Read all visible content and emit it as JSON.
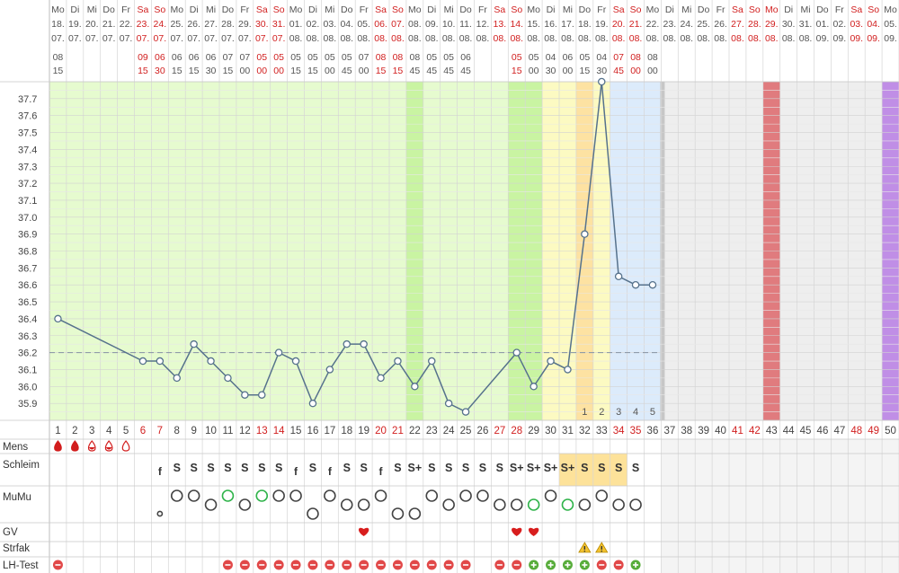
{
  "chart_data": {
    "type": "line",
    "title": "",
    "ylim": [
      35.8,
      37.8
    ],
    "y_ticks": [
      "35.9",
      "36.0",
      "36.1",
      "36.2",
      "36.3",
      "36.4",
      "36.5",
      "36.6",
      "36.7",
      "36.8",
      "36.9",
      "37.0",
      "37.1",
      "37.2",
      "37.3",
      "37.4",
      "37.5",
      "37.6",
      "37.7"
    ],
    "coverline": 36.2,
    "weekdays": [
      "Mo",
      "Di",
      "Mi",
      "Do",
      "Fr",
      "Sa",
      "So",
      "Mo",
      "Di",
      "Mi",
      "Do",
      "Fr",
      "Sa",
      "So",
      "Mo",
      "Di",
      "Mi",
      "Do",
      "Fr",
      "Sa",
      "So",
      "Mo",
      "Di",
      "Mi",
      "Do",
      "Fr",
      "Sa",
      "So",
      "Mo",
      "Di",
      "Mi",
      "Do",
      "Fr",
      "Sa",
      "So",
      "Mo",
      "Di",
      "Mi",
      "Do",
      "Fr",
      "Sa",
      "So",
      "Mo",
      "Di",
      "Mi",
      "Do",
      "Fr",
      "Sa",
      "So",
      "Mo"
    ],
    "day_nums": [
      "18.",
      "19.",
      "20.",
      "21.",
      "22.",
      "23.",
      "24.",
      "25.",
      "26.",
      "27.",
      "28.",
      "29.",
      "30.",
      "31.",
      "01.",
      "02.",
      "03.",
      "04.",
      "05.",
      "06.",
      "07.",
      "08.",
      "09.",
      "10.",
      "11.",
      "12.",
      "13.",
      "14.",
      "15.",
      "16.",
      "17.",
      "18.",
      "19.",
      "20.",
      "21.",
      "22.",
      "23.",
      "24.",
      "25.",
      "26.",
      "27.",
      "28.",
      "29.",
      "30.",
      "31.",
      "01.",
      "02.",
      "03.",
      "04.",
      "05."
    ],
    "months": [
      "07.",
      "07.",
      "07.",
      "07.",
      "07.",
      "07.",
      "07.",
      "07.",
      "07.",
      "07.",
      "07.",
      "07.",
      "07.",
      "07.",
      "08.",
      "08.",
      "08.",
      "08.",
      "08.",
      "08.",
      "08.",
      "08.",
      "08.",
      "08.",
      "08.",
      "08.",
      "08.",
      "08.",
      "08.",
      "08.",
      "08.",
      "08.",
      "08.",
      "08.",
      "08.",
      "08.",
      "08.",
      "08.",
      "08.",
      "08.",
      "08.",
      "08.",
      "08.",
      "08.",
      "08.",
      "09.",
      "09.",
      "09.",
      "09.",
      "09."
    ],
    "red_days": [
      6,
      7,
      13,
      14,
      20,
      21,
      27,
      28,
      34,
      35,
      41,
      42,
      43,
      48,
      49
    ],
    "time_hours": [
      "08",
      "",
      "",
      "",
      "",
      "09",
      "06",
      "06",
      "06",
      "06",
      "07",
      "07",
      "05",
      "05",
      "05",
      "05",
      "05",
      "05",
      "07",
      "08",
      "08",
      "08",
      "05",
      "05",
      "06",
      "",
      "",
      "05",
      "05",
      "04",
      "06",
      "05",
      "04",
      "07",
      "08",
      "08"
    ],
    "time_minutes": [
      "15",
      "",
      "",
      "",
      "",
      "15",
      "30",
      "15",
      "15",
      "30",
      "15",
      "00",
      "00",
      "00",
      "15",
      "15",
      "00",
      "45",
      "00",
      "15",
      "15",
      "45",
      "45",
      "45",
      "45",
      "",
      "",
      "15",
      "00",
      "30",
      "00",
      "15",
      "30",
      "45",
      "00",
      "00"
    ],
    "red_times": [
      6,
      7,
      13,
      14,
      20,
      21,
      28,
      34,
      35
    ],
    "cycle_days": [
      "1",
      "2",
      "3",
      "4",
      "5",
      "6",
      "7",
      "8",
      "9",
      "10",
      "11",
      "12",
      "13",
      "14",
      "15",
      "16",
      "17",
      "18",
      "19",
      "20",
      "21",
      "22",
      "23",
      "24",
      "25",
      "26",
      "27",
      "28",
      "29",
      "30",
      "31",
      "32",
      "33",
      "34",
      "35",
      "36",
      "37",
      "38",
      "39",
      "40",
      "41",
      "42",
      "43",
      "44",
      "45",
      "46",
      "47",
      "48",
      "49",
      "50"
    ],
    "red_cycle_days": [
      6,
      7,
      13,
      14,
      20,
      21,
      27,
      28,
      34,
      35,
      41,
      42,
      48,
      49
    ],
    "post_ovulation_labels": [
      "1",
      "2",
      "3",
      "4",
      "5"
    ],
    "temperatures": [
      {
        "day": 1,
        "value": 36.4
      },
      {
        "day": 6,
        "value": 36.15
      },
      {
        "day": 7,
        "value": 36.15
      },
      {
        "day": 8,
        "value": 36.05
      },
      {
        "day": 9,
        "value": 36.25
      },
      {
        "day": 10,
        "value": 36.15
      },
      {
        "day": 11,
        "value": 36.05
      },
      {
        "day": 12,
        "value": 35.95
      },
      {
        "day": 13,
        "value": 35.95
      },
      {
        "day": 14,
        "value": 36.2
      },
      {
        "day": 15,
        "value": 36.15
      },
      {
        "day": 16,
        "value": 35.9
      },
      {
        "day": 17,
        "value": 36.1
      },
      {
        "day": 18,
        "value": 36.25
      },
      {
        "day": 19,
        "value": 36.25
      },
      {
        "day": 20,
        "value": 36.05
      },
      {
        "day": 21,
        "value": 36.15
      },
      {
        "day": 22,
        "value": 36.0
      },
      {
        "day": 23,
        "value": 36.15
      },
      {
        "day": 24,
        "value": 35.9
      },
      {
        "day": 25,
        "value": 35.85
      },
      {
        "day": 28,
        "value": 36.2
      },
      {
        "day": 29,
        "value": 36.0
      },
      {
        "day": 30,
        "value": 36.15
      },
      {
        "day": 31,
        "value": 36.1
      },
      {
        "day": 32,
        "value": 36.9
      },
      {
        "day": 33,
        "value": 37.8
      },
      {
        "day": 34,
        "value": 36.65
      },
      {
        "day": 35,
        "value": 36.6
      },
      {
        "day": 36,
        "value": 36.6
      }
    ],
    "row_labels": {
      "mens": "Mens",
      "schleim": "Schleim",
      "mumu": "MuMu",
      "gv": "GV",
      "strfak": "Strfak",
      "lh": "LH-Test"
    },
    "mens": [
      {
        "day": 1,
        "level": "heavy"
      },
      {
        "day": 2,
        "level": "heavy"
      },
      {
        "day": 3,
        "level": "medium"
      },
      {
        "day": 4,
        "level": "medium"
      },
      {
        "day": 5,
        "level": "light"
      }
    ],
    "schleim": [
      {
        "day": 7,
        "text": "f"
      },
      {
        "day": 8,
        "text": "S"
      },
      {
        "day": 9,
        "text": "S"
      },
      {
        "day": 10,
        "text": "S"
      },
      {
        "day": 11,
        "text": "S"
      },
      {
        "day": 12,
        "text": "S"
      },
      {
        "day": 13,
        "text": "S"
      },
      {
        "day": 14,
        "text": "S"
      },
      {
        "day": 15,
        "text": "f"
      },
      {
        "day": 16,
        "text": "S"
      },
      {
        "day": 17,
        "text": "f"
      },
      {
        "day": 18,
        "text": "S"
      },
      {
        "day": 19,
        "text": "S"
      },
      {
        "day": 20,
        "text": "f"
      },
      {
        "day": 21,
        "text": "S"
      },
      {
        "day": 22,
        "text": "S+"
      },
      {
        "day": 23,
        "text": "S"
      },
      {
        "day": 24,
        "text": "S"
      },
      {
        "day": 25,
        "text": "S"
      },
      {
        "day": 26,
        "text": "S"
      },
      {
        "day": 27,
        "text": "S"
      },
      {
        "day": 28,
        "text": "S+"
      },
      {
        "day": 29,
        "text": "S+"
      },
      {
        "day": 30,
        "text": "S+"
      },
      {
        "day": 31,
        "text": "S+"
      },
      {
        "day": 32,
        "text": "S"
      },
      {
        "day": 33,
        "text": "S"
      },
      {
        "day": 34,
        "text": "S"
      },
      {
        "day": 35,
        "text": "S"
      }
    ],
    "mumu": [
      {
        "day": 7,
        "pos": "low",
        "size": "small",
        "green": false
      },
      {
        "day": 8,
        "pos": "high",
        "size": "big",
        "green": false
      },
      {
        "day": 9,
        "pos": "high",
        "size": "big",
        "green": false
      },
      {
        "day": 10,
        "pos": "mid",
        "size": "big",
        "green": false
      },
      {
        "day": 11,
        "pos": "high",
        "size": "big",
        "green": true
      },
      {
        "day": 12,
        "pos": "mid",
        "size": "big",
        "green": false
      },
      {
        "day": 13,
        "pos": "high",
        "size": "big",
        "green": true
      },
      {
        "day": 14,
        "pos": "high",
        "size": "big",
        "green": false
      },
      {
        "day": 15,
        "pos": "high",
        "size": "big",
        "green": false
      },
      {
        "day": 16,
        "pos": "low",
        "size": "big",
        "green": false
      },
      {
        "day": 17,
        "pos": "high",
        "size": "big",
        "green": false
      },
      {
        "day": 18,
        "pos": "mid",
        "size": "big",
        "green": false
      },
      {
        "day": 19,
        "pos": "mid",
        "size": "big",
        "green": false
      },
      {
        "day": 20,
        "pos": "high",
        "size": "big",
        "green": false
      },
      {
        "day": 21,
        "pos": "low",
        "size": "big",
        "green": false
      },
      {
        "day": 22,
        "pos": "low",
        "size": "big",
        "green": false
      },
      {
        "day": 23,
        "pos": "high",
        "size": "big",
        "green": false
      },
      {
        "day": 24,
        "pos": "mid",
        "size": "big",
        "green": false
      },
      {
        "day": 25,
        "pos": "high",
        "size": "big",
        "green": false
      },
      {
        "day": 26,
        "pos": "high",
        "size": "big",
        "green": false
      },
      {
        "day": 27,
        "pos": "mid",
        "size": "big",
        "green": false
      },
      {
        "day": 28,
        "pos": "mid",
        "size": "big",
        "green": false
      },
      {
        "day": 29,
        "pos": "mid",
        "size": "big",
        "green": true
      },
      {
        "day": 30,
        "pos": "high",
        "size": "big",
        "green": false
      },
      {
        "day": 31,
        "pos": "mid",
        "size": "big",
        "green": true
      },
      {
        "day": 32,
        "pos": "mid",
        "size": "big",
        "green": false
      },
      {
        "day": 33,
        "pos": "high",
        "size": "big",
        "green": false
      },
      {
        "day": 34,
        "pos": "mid",
        "size": "big",
        "green": false
      },
      {
        "day": 35,
        "pos": "mid",
        "size": "big",
        "green": false
      }
    ],
    "gv": [
      19,
      28,
      29
    ],
    "strfak": [
      32,
      33
    ],
    "lh": [
      {
        "day": 1,
        "result": "neg"
      },
      {
        "day": 11,
        "result": "neg"
      },
      {
        "day": 12,
        "result": "neg"
      },
      {
        "day": 13,
        "result": "neg"
      },
      {
        "day": 14,
        "result": "neg"
      },
      {
        "day": 15,
        "result": "neg"
      },
      {
        "day": 16,
        "result": "neg"
      },
      {
        "day": 17,
        "result": "neg"
      },
      {
        "day": 18,
        "result": "neg"
      },
      {
        "day": 19,
        "result": "neg"
      },
      {
        "day": 20,
        "result": "neg"
      },
      {
        "day": 21,
        "result": "neg"
      },
      {
        "day": 22,
        "result": "neg"
      },
      {
        "day": 23,
        "result": "neg"
      },
      {
        "day": 24,
        "result": "neg"
      },
      {
        "day": 25,
        "result": "neg"
      },
      {
        "day": 27,
        "result": "neg"
      },
      {
        "day": 28,
        "result": "neg"
      },
      {
        "day": 29,
        "result": "pos"
      },
      {
        "day": 30,
        "result": "pos"
      },
      {
        "day": 31,
        "result": "pos"
      },
      {
        "day": 32,
        "result": "pos"
      },
      {
        "day": 33,
        "result": "neg"
      },
      {
        "day": 34,
        "result": "neg"
      },
      {
        "day": 35,
        "result": "pos"
      }
    ],
    "colors": {
      "green": "#e6fbcf",
      "green_strong": "#c9f4a2",
      "yellow": "#fcfac2",
      "orange": "#fde2a2",
      "blue": "#dcebfb",
      "grey": "#eeeeee",
      "red_marker": "#e07b7e",
      "purple_marker": "#c08ee6",
      "line": "#56728c",
      "red_text": "#d11f1f",
      "neg": "#e14848",
      "pos": "#57ac3a",
      "heart": "#d81e1e"
    }
  }
}
